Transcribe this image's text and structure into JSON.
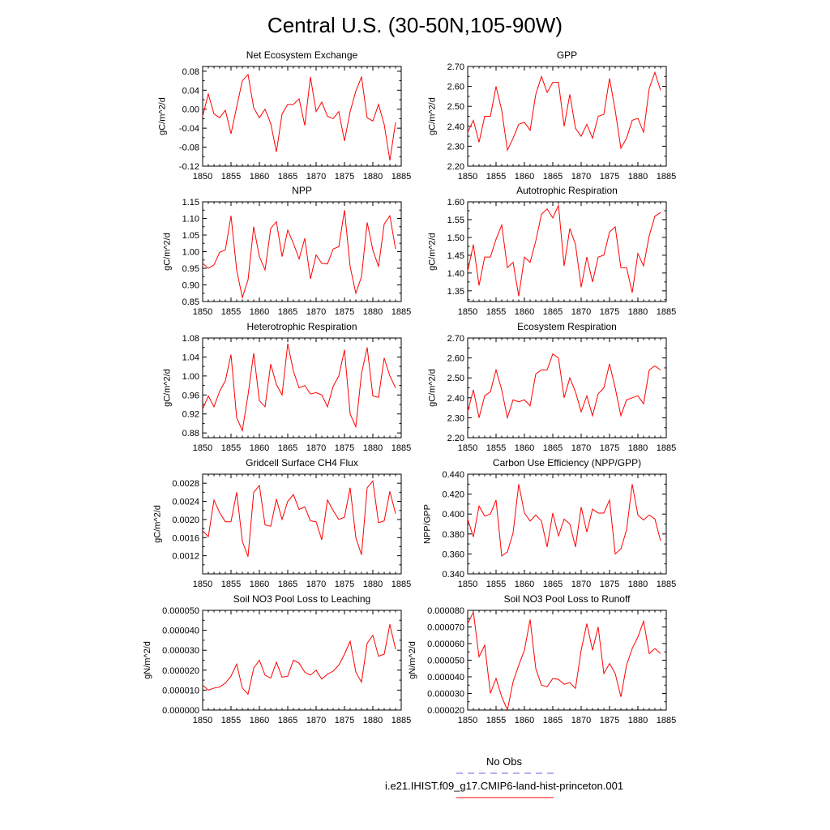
{
  "figure": {
    "title": "Central U.S. (30-50N,105-90W)",
    "legend_obs": "No Obs",
    "legend_case": "i.e21.IHIST.f09_g17.CMIP6-land-hist-princeton.001",
    "line_color": "#ff0000",
    "obs_color": "#6666dd"
  },
  "chart_data": [
    {
      "type": "line",
      "title": "Net Ecosystem Exchange",
      "ylabel": "gC/m^2/d",
      "xlim": [
        1850,
        1885
      ],
      "xticks": [
        1850,
        1855,
        1860,
        1865,
        1870,
        1875,
        1880,
        1885
      ],
      "xtick_labels": [
        "1850",
        "1855",
        "1860",
        "1865",
        "1870",
        "1875",
        "1880",
        "1885"
      ],
      "ylim": [
        -0.12,
        0.09
      ],
      "yticks": [
        -0.12,
        -0.08,
        -0.04,
        0.0,
        0.04,
        0.08
      ],
      "ytick_labels": [
        "-0.12",
        "-0.08",
        "-0.04",
        "0.00",
        "0.04",
        "0.08"
      ],
      "x_start": 1850,
      "series": [
        {
          "values": [
            -0.015,
            0.032,
            -0.01,
            -0.018,
            -0.002,
            -0.052,
            0.005,
            0.06,
            0.073,
            0.003,
            -0.018,
            0.0,
            -0.03,
            -0.09,
            -0.01,
            0.01,
            0.01,
            0.022,
            -0.034,
            0.068,
            -0.005,
            0.015,
            -0.015,
            -0.02,
            -0.005,
            -0.067,
            -0.005,
            0.038,
            0.068,
            -0.018,
            -0.025,
            0.01,
            -0.032,
            -0.108,
            -0.028
          ]
        }
      ]
    },
    {
      "type": "line",
      "title": "GPP",
      "ylabel": "gC/m^2/d",
      "xlim": [
        1850,
        1885
      ],
      "xticks": [
        1850,
        1855,
        1860,
        1865,
        1870,
        1875,
        1880,
        1885
      ],
      "xtick_labels": [
        "1850",
        "1855",
        "1860",
        "1865",
        "1870",
        "1875",
        "1880",
        "1885"
      ],
      "ylim": [
        2.2,
        2.7
      ],
      "yticks": [
        2.2,
        2.3,
        2.4,
        2.5,
        2.6,
        2.7
      ],
      "ytick_labels": [
        "2.20",
        "2.30",
        "2.40",
        "2.50",
        "2.60",
        "2.70"
      ],
      "x_start": 1850,
      "series": [
        {
          "values": [
            2.37,
            2.43,
            2.32,
            2.45,
            2.45,
            2.6,
            2.48,
            2.28,
            2.34,
            2.41,
            2.42,
            2.38,
            2.56,
            2.65,
            2.57,
            2.62,
            2.62,
            2.4,
            2.56,
            2.39,
            2.35,
            2.41,
            2.34,
            2.45,
            2.46,
            2.64,
            2.48,
            2.29,
            2.34,
            2.43,
            2.44,
            2.37,
            2.59,
            2.67,
            2.58
          ]
        }
      ]
    },
    {
      "type": "line",
      "title": "NPP",
      "ylabel": "gC/m^2/d",
      "xlim": [
        1850,
        1885
      ],
      "xticks": [
        1850,
        1855,
        1860,
        1865,
        1870,
        1875,
        1880,
        1885
      ],
      "xtick_labels": [
        "1850",
        "1855",
        "1860",
        "1865",
        "1870",
        "1875",
        "1880",
        "1885"
      ],
      "ylim": [
        0.85,
        1.15
      ],
      "yticks": [
        0.85,
        0.9,
        0.95,
        1.0,
        1.05,
        1.1,
        1.15
      ],
      "ytick_labels": [
        "0.85",
        "0.90",
        "0.95",
        "1.00",
        "1.05",
        "1.10",
        "1.15"
      ],
      "x_start": 1850,
      "series": [
        {
          "values": [
            0.965,
            0.95,
            0.96,
            0.998,
            1.005,
            1.108,
            0.945,
            0.862,
            0.915,
            1.075,
            0.985,
            0.945,
            1.07,
            1.09,
            0.985,
            1.065,
            1.025,
            0.978,
            1.04,
            0.918,
            0.99,
            0.965,
            0.963,
            1.008,
            1.015,
            1.125,
            0.955,
            0.875,
            0.925,
            1.088,
            1.005,
            0.955,
            1.083,
            1.108,
            1.008
          ]
        }
      ]
    },
    {
      "type": "line",
      "title": "Autotrophic Respiration",
      "ylabel": "gC/m^2/d",
      "xlim": [
        1850,
        1885
      ],
      "xticks": [
        1850,
        1855,
        1860,
        1865,
        1870,
        1875,
        1880,
        1885
      ],
      "xtick_labels": [
        "1850",
        "1855",
        "1860",
        "1865",
        "1870",
        "1875",
        "1880",
        "1885"
      ],
      "ylim": [
        1.32,
        1.6
      ],
      "yticks": [
        1.35,
        1.4,
        1.45,
        1.5,
        1.55,
        1.6
      ],
      "ytick_labels": [
        "1.35",
        "1.40",
        "1.45",
        "1.50",
        "1.55",
        "1.60"
      ],
      "x_start": 1850,
      "series": [
        {
          "values": [
            1.405,
            1.48,
            1.365,
            1.445,
            1.445,
            1.495,
            1.535,
            1.415,
            1.43,
            1.335,
            1.445,
            1.43,
            1.49,
            1.565,
            1.58,
            1.555,
            1.59,
            1.42,
            1.525,
            1.48,
            1.36,
            1.445,
            1.375,
            1.445,
            1.45,
            1.515,
            1.53,
            1.415,
            1.415,
            1.345,
            1.455,
            1.42,
            1.505,
            1.56,
            1.57
          ]
        }
      ]
    },
    {
      "type": "line",
      "title": "Heterotrophic Respiration",
      "ylabel": "gC/m^2/d",
      "xlim": [
        1850,
        1885
      ],
      "xticks": [
        1850,
        1855,
        1860,
        1865,
        1870,
        1875,
        1880,
        1885
      ],
      "xtick_labels": [
        "1850",
        "1855",
        "1860",
        "1865",
        "1870",
        "1875",
        "1880",
        "1885"
      ],
      "ylim": [
        0.87,
        1.08
      ],
      "yticks": [
        0.88,
        0.92,
        0.96,
        1.0,
        1.04,
        1.08
      ],
      "ytick_labels": [
        "0.88",
        "0.92",
        "0.96",
        "1.00",
        "1.04",
        "1.08"
      ],
      "x_start": 1850,
      "series": [
        {
          "values": [
            0.93,
            0.958,
            0.935,
            0.968,
            0.99,
            1.045,
            0.912,
            0.885,
            0.96,
            1.048,
            0.948,
            0.935,
            1.025,
            0.982,
            0.96,
            1.068,
            1.01,
            0.975,
            0.98,
            0.962,
            0.965,
            0.96,
            0.935,
            0.978,
            1.0,
            1.055,
            0.92,
            0.893,
            1.005,
            1.06,
            0.958,
            0.955,
            1.038,
            1.0,
            0.975
          ]
        }
      ]
    },
    {
      "type": "line",
      "title": "Ecosystem Respiration",
      "ylabel": "gC/m^2/d",
      "xlim": [
        1850,
        1885
      ],
      "xticks": [
        1850,
        1855,
        1860,
        1865,
        1870,
        1875,
        1880,
        1885
      ],
      "xtick_labels": [
        "1850",
        "1855",
        "1860",
        "1865",
        "1870",
        "1875",
        "1880",
        "1885"
      ],
      "ylim": [
        2.2,
        2.7
      ],
      "yticks": [
        2.2,
        2.3,
        2.4,
        2.5,
        2.6,
        2.7
      ],
      "ytick_labels": [
        "2.20",
        "2.30",
        "2.40",
        "2.50",
        "2.60",
        "2.70"
      ],
      "x_start": 1850,
      "series": [
        {
          "values": [
            2.33,
            2.44,
            2.3,
            2.41,
            2.43,
            2.54,
            2.44,
            2.3,
            2.39,
            2.38,
            2.39,
            2.36,
            2.52,
            2.54,
            2.54,
            2.62,
            2.6,
            2.4,
            2.5,
            2.43,
            2.33,
            2.41,
            2.31,
            2.42,
            2.45,
            2.57,
            2.45,
            2.31,
            2.39,
            2.4,
            2.41,
            2.37,
            2.54,
            2.56,
            2.54
          ]
        }
      ]
    },
    {
      "type": "line",
      "title": "Gridcell Surface CH4 Flux",
      "ylabel": "gC/m^2/d",
      "xlim": [
        1850,
        1885
      ],
      "xticks": [
        1850,
        1855,
        1860,
        1865,
        1870,
        1875,
        1880,
        1885
      ],
      "xtick_labels": [
        "1850",
        "1855",
        "1860",
        "1865",
        "1870",
        "1875",
        "1880",
        "1885"
      ],
      "ylim": [
        0.0008,
        0.003
      ],
      "yticks": [
        0.0012,
        0.0016,
        0.002,
        0.0024,
        0.0028
      ],
      "ytick_labels": [
        "0.0012",
        "0.0016",
        "0.0020",
        "0.0024",
        "0.0028"
      ],
      "x_start": 1850,
      "series": [
        {
          "values": [
            0.00175,
            0.00162,
            0.00243,
            0.00215,
            0.00195,
            0.00195,
            0.0026,
            0.00152,
            0.00118,
            0.0026,
            0.00275,
            0.00188,
            0.00185,
            0.00245,
            0.002,
            0.0024,
            0.00255,
            0.00222,
            0.00228,
            0.00197,
            0.00195,
            0.00155,
            0.00243,
            0.0022,
            0.002,
            0.00205,
            0.0027,
            0.0016,
            0.00122,
            0.0027,
            0.00285,
            0.00193,
            0.00197,
            0.00262,
            0.00213
          ]
        }
      ]
    },
    {
      "type": "line",
      "title": "Carbon Use Efficiency (NPP/GPP)",
      "ylabel": "NPP/GPP",
      "xlim": [
        1850,
        1885
      ],
      "xticks": [
        1850,
        1855,
        1860,
        1865,
        1870,
        1875,
        1880,
        1885
      ],
      "xtick_labels": [
        "1850",
        "1855",
        "1860",
        "1865",
        "1870",
        "1875",
        "1880",
        "1885"
      ],
      "ylim": [
        0.34,
        0.44
      ],
      "yticks": [
        0.34,
        0.36,
        0.38,
        0.4,
        0.42,
        0.44
      ],
      "ytick_labels": [
        "0.340",
        "0.360",
        "0.380",
        "0.400",
        "0.420",
        "0.440"
      ],
      "x_start": 1850,
      "series": [
        {
          "values": [
            0.395,
            0.377,
            0.408,
            0.398,
            0.4,
            0.414,
            0.358,
            0.362,
            0.381,
            0.43,
            0.401,
            0.393,
            0.399,
            0.393,
            0.367,
            0.401,
            0.378,
            0.395,
            0.39,
            0.367,
            0.407,
            0.382,
            0.405,
            0.401,
            0.401,
            0.414,
            0.36,
            0.365,
            0.384,
            0.43,
            0.399,
            0.394,
            0.399,
            0.395,
            0.373
          ]
        }
      ]
    },
    {
      "type": "line",
      "title": "Soil NO3 Pool Loss to Leaching",
      "ylabel": "gN/m^2/d",
      "xlim": [
        1850,
        1885
      ],
      "xticks": [
        1850,
        1855,
        1860,
        1865,
        1870,
        1875,
        1880,
        1885
      ],
      "xtick_labels": [
        "1850",
        "1855",
        "1860",
        "1865",
        "1870",
        "1875",
        "1880",
        "1885"
      ],
      "ylim": [
        0.0,
        5e-05
      ],
      "yticks": [
        0.0,
        1e-05,
        2e-05,
        3e-05,
        4e-05,
        5e-05
      ],
      "ytick_labels": [
        "0.000000",
        "0.000010",
        "0.000020",
        "0.000030",
        "0.000040",
        "0.000050"
      ],
      "x_start": 1850,
      "series": [
        {
          "values": [
            1.25e-05,
            1e-05,
            1.1e-05,
            1.15e-05,
            1.35e-05,
            1.7e-05,
            2.3e-05,
            1.1e-05,
            8e-06,
            2.1e-05,
            2.5e-05,
            1.75e-05,
            1.6e-05,
            2.4e-05,
            1.65e-05,
            1.7e-05,
            2.5e-05,
            2.35e-05,
            1.9e-05,
            1.75e-05,
            2e-05,
            1.55e-05,
            1.8e-05,
            1.95e-05,
            2.25e-05,
            2.8e-05,
            3.45e-05,
            1.9e-05,
            1.4e-05,
            3.35e-05,
            3.75e-05,
            2.7e-05,
            2.8e-05,
            4.3e-05,
            3.05e-05
          ]
        }
      ]
    },
    {
      "type": "line",
      "title": "Soil NO3 Pool Loss to Runoff",
      "ylabel": "gN/m^2/d",
      "xlim": [
        1850,
        1885
      ],
      "xticks": [
        1850,
        1855,
        1860,
        1865,
        1870,
        1875,
        1880,
        1885
      ],
      "xtick_labels": [
        "1850",
        "1855",
        "1860",
        "1865",
        "1870",
        "1875",
        "1880",
        "1885"
      ],
      "ylim": [
        2e-05,
        8e-05
      ],
      "yticks": [
        2e-05,
        3e-05,
        4e-05,
        5e-05,
        6e-05,
        7e-05,
        8e-05
      ],
      "ytick_labels": [
        "0.000020",
        "0.000030",
        "0.000040",
        "0.000050",
        "0.000060",
        "0.000070",
        "0.000080"
      ],
      "x_start": 1850,
      "series": [
        {
          "values": [
            7.2e-05,
            7.9e-05,
            5.2e-05,
            5.9e-05,
            3e-05,
            3.9e-05,
            2.8e-05,
            2e-05,
            3.7e-05,
            4.7e-05,
            5.6e-05,
            7.45e-05,
            4.5e-05,
            3.5e-05,
            3.4e-05,
            3.9e-05,
            3.85e-05,
            3.55e-05,
            3.65e-05,
            3.3e-05,
            5.6e-05,
            7.2e-05,
            5.6e-05,
            7e-05,
            4.2e-05,
            4.8e-05,
            4.2e-05,
            2.8e-05,
            4.7e-05,
            5.7e-05,
            6.4e-05,
            7.35e-05,
            5.4e-05,
            5.7e-05,
            5.4e-05
          ]
        }
      ]
    }
  ]
}
